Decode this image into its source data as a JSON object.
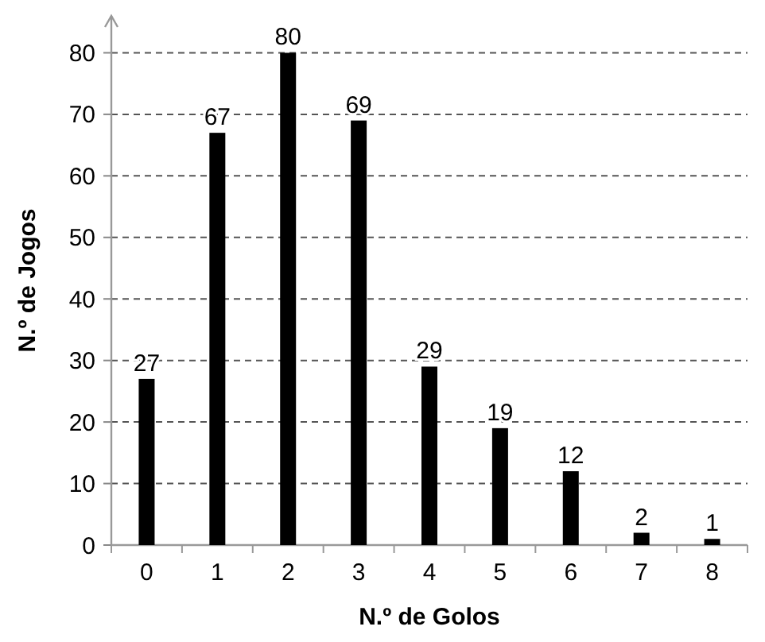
{
  "chart_data": {
    "type": "bar",
    "xlabel": "N.º de Golos",
    "ylabel": "N.º de Jogos",
    "categories": [
      "0",
      "1",
      "2",
      "3",
      "4",
      "5",
      "6",
      "7",
      "8"
    ],
    "values": [
      27,
      67,
      80,
      69,
      29,
      19,
      12,
      2,
      1
    ],
    "color": "#000000",
    "ylim": [
      0,
      86
    ],
    "yticks": [
      0,
      10,
      20,
      30,
      40,
      50,
      60,
      70,
      80
    ],
    "grid": "y",
    "data_labels": true
  }
}
